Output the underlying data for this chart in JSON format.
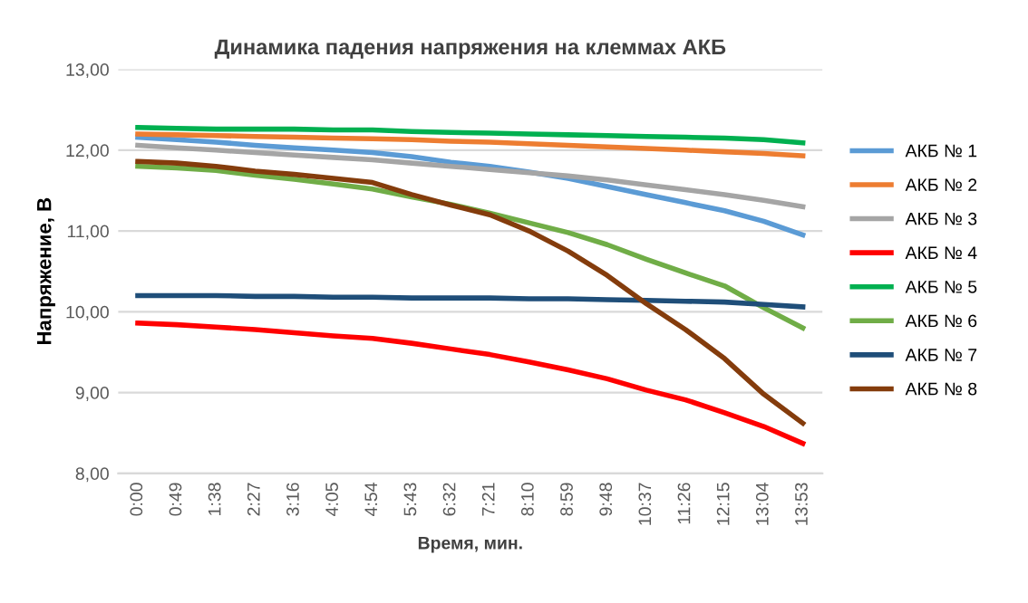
{
  "chart_data": {
    "type": "line",
    "title": "Динамика падения напряжения на клеммах АКБ",
    "xlabel": "Время, мин.",
    "ylabel": "Напряжение, В",
    "categories": [
      "0:00",
      "0:49",
      "1:38",
      "2:27",
      "3:16",
      "4:05",
      "4:54",
      "5:43",
      "6:32",
      "7:21",
      "8:10",
      "8:59",
      "9:48",
      "10:37",
      "11:26",
      "12:15",
      "13:04",
      "13:53"
    ],
    "series": [
      {
        "name": "АКБ № 1",
        "color": "#5b9bd5",
        "values": [
          12.16,
          12.13,
          12.1,
          12.06,
          12.03,
          12.0,
          11.97,
          11.92,
          11.85,
          11.8,
          11.73,
          11.65,
          11.55,
          11.45,
          11.35,
          11.25,
          11.12,
          10.95
        ]
      },
      {
        "name": "АКБ № 2",
        "color": "#ed7d31",
        "values": [
          12.2,
          12.19,
          12.18,
          12.17,
          12.16,
          12.15,
          12.14,
          12.13,
          12.11,
          12.1,
          12.08,
          12.06,
          12.04,
          12.02,
          12.0,
          11.98,
          11.96,
          11.93
        ]
      },
      {
        "name": "АКБ № 3",
        "color": "#a5a5a5",
        "values": [
          12.06,
          12.03,
          12.0,
          11.97,
          11.94,
          11.91,
          11.88,
          11.84,
          11.8,
          11.76,
          11.72,
          11.68,
          11.63,
          11.57,
          11.51,
          11.45,
          11.38,
          11.3
        ]
      },
      {
        "name": "АКБ № 4",
        "color": "#ff0000",
        "values": [
          9.86,
          9.84,
          9.81,
          9.78,
          9.74,
          9.7,
          9.67,
          9.61,
          9.54,
          9.47,
          9.38,
          9.28,
          9.17,
          9.03,
          8.91,
          8.75,
          8.58,
          8.37
        ]
      },
      {
        "name": "АКБ № 5",
        "color": "#00b050",
        "values": [
          12.28,
          12.27,
          12.26,
          12.26,
          12.26,
          12.25,
          12.25,
          12.23,
          12.22,
          12.21,
          12.2,
          12.19,
          12.18,
          12.17,
          12.16,
          12.15,
          12.13,
          12.09
        ]
      },
      {
        "name": "АКБ № 6",
        "color": "#70ad47",
        "values": [
          11.8,
          11.78,
          11.75,
          11.69,
          11.64,
          11.58,
          11.52,
          11.42,
          11.33,
          11.22,
          11.1,
          10.98,
          10.83,
          10.65,
          10.48,
          10.32,
          10.05,
          9.8
        ]
      },
      {
        "name": "АКБ № 7",
        "color": "#1f4e79",
        "values": [
          10.2,
          10.2,
          10.2,
          10.19,
          10.19,
          10.18,
          10.18,
          10.17,
          10.17,
          10.17,
          10.16,
          10.16,
          10.15,
          10.14,
          10.13,
          10.12,
          10.09,
          10.06
        ]
      },
      {
        "name": "АКБ № 8",
        "color": "#843c0c",
        "values": [
          11.86,
          11.84,
          11.8,
          11.74,
          11.7,
          11.65,
          11.6,
          11.45,
          11.32,
          11.2,
          11.0,
          10.75,
          10.45,
          10.1,
          9.78,
          9.42,
          8.98,
          8.62
        ]
      }
    ],
    "ylim": [
      8,
      13
    ],
    "yticks": [
      {
        "value": 8,
        "label": "8,00"
      },
      {
        "value": 9,
        "label": "9,00"
      },
      {
        "value": 10,
        "label": "10,00"
      },
      {
        "value": 11,
        "label": "11,00"
      },
      {
        "value": 12,
        "label": "12,00"
      },
      {
        "value": 13,
        "label": "13,00"
      }
    ],
    "grid": "y",
    "legend": "right",
    "marker": "none",
    "line_style": "solid"
  }
}
